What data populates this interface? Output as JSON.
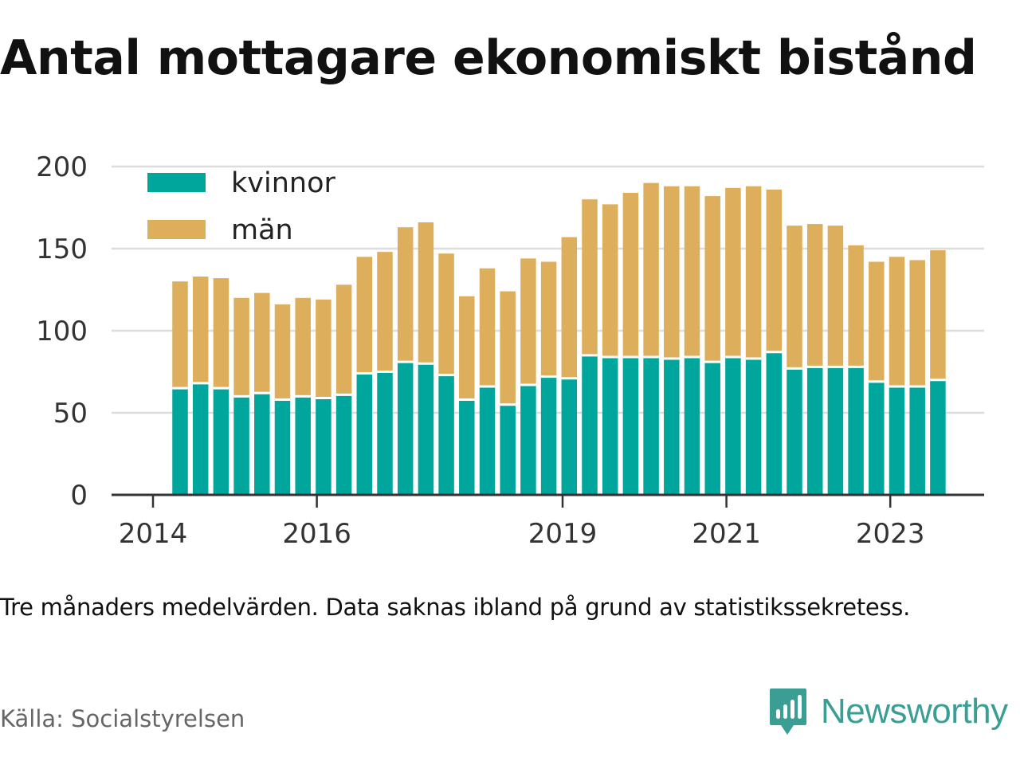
{
  "title": "Antal mottagare ekonomiskt bistånd",
  "note": "Tre månaders medelvärden. Data saknas ibland på grund av statistikssekretess.",
  "source": "Källa: Socialstyrelsen",
  "brand": {
    "name": "Newsworthy",
    "icon": "newsworthy-logo-icon",
    "color": "#3a9e94"
  },
  "chart_data": {
    "type": "bar",
    "stacked": true,
    "title": "Antal mottagare ekonomiskt bistånd",
    "xlabel": "",
    "ylabel": "",
    "ylim": [
      0,
      200
    ],
    "yticks": [
      "0",
      "50",
      "100",
      "150",
      "200"
    ],
    "xticks": [
      {
        "label": "2014",
        "position": 0
      },
      {
        "label": "2016",
        "position": 8
      },
      {
        "label": "2019",
        "position": 20
      },
      {
        "label": "2021",
        "position": 28
      },
      {
        "label": "2023",
        "position": 36
      }
    ],
    "grid": true,
    "legend": "top-left",
    "categories": [
      "2014 Q2",
      "2014 Q3",
      "2014 Q4",
      "2015 Q1",
      "2015 Q2",
      "2015 Q3",
      "2015 Q4",
      "2016 Q1",
      "2016 Q2",
      "2016 Q3",
      "2016 Q4",
      "2017 Q1",
      "2017 Q2",
      "2017 Q3",
      "2017 Q4",
      "2018 Q1",
      "2018 Q2",
      "2018 Q3",
      "2018 Q4",
      "2019 Q1",
      "2019 Q2",
      "2019 Q3",
      "2019 Q4",
      "2020 Q1",
      "2020 Q2",
      "2020 Q3",
      "2020 Q4",
      "2021 Q1",
      "2021 Q2",
      "2021 Q3",
      "2021 Q4",
      "2022 Q1",
      "2022 Q2",
      "2022 Q3",
      "2022 Q4",
      "2023 Q1",
      "2023 Q2",
      "2023 Q3"
    ],
    "series": [
      {
        "name": "kvinnor",
        "color": "#00a59b",
        "values": [
          65,
          68,
          65,
          60,
          62,
          58,
          60,
          59,
          61,
          74,
          75,
          81,
          80,
          73,
          58,
          66,
          55,
          67,
          72,
          71,
          85,
          84,
          84,
          84,
          83,
          84,
          81,
          84,
          83,
          87,
          77,
          78,
          78,
          78,
          69,
          66,
          66,
          70
        ]
      },
      {
        "name": "män",
        "color": "#ddaf5d",
        "values": [
          65,
          65,
          67,
          60,
          61,
          58,
          60,
          60,
          67,
          71,
          73,
          82,
          86,
          74,
          63,
          72,
          69,
          77,
          70,
          86,
          95,
          93,
          100,
          106,
          105,
          104,
          101,
          103,
          105,
          99,
          87,
          87,
          86,
          74,
          73,
          79,
          77,
          79
        ]
      }
    ]
  }
}
